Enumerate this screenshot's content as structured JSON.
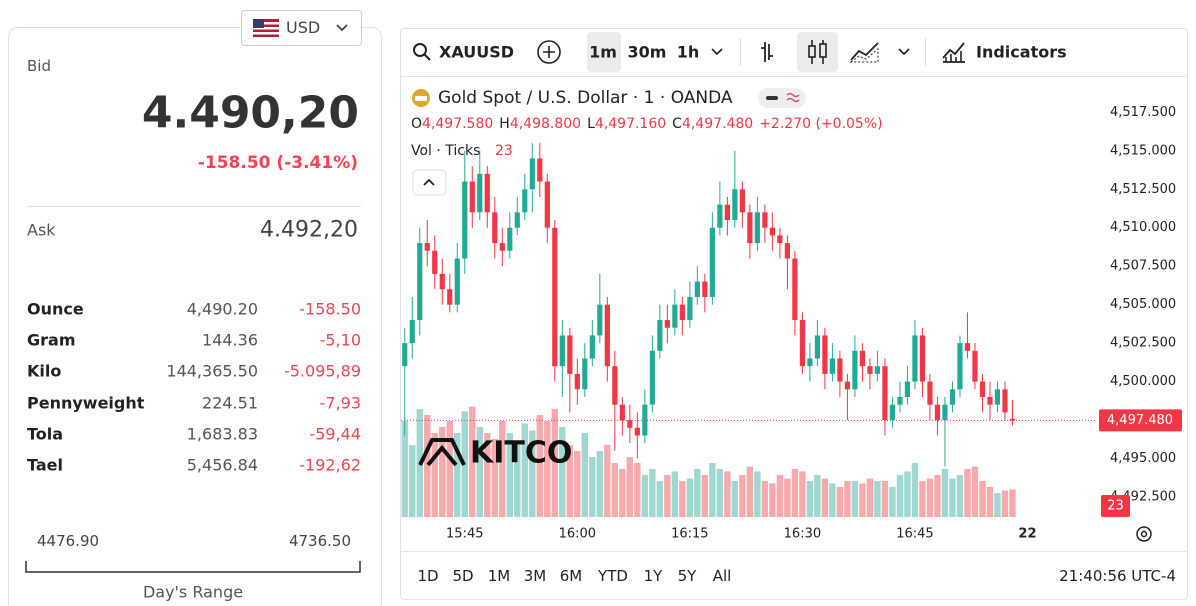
{
  "currency": "USD",
  "bid": {
    "label": "Bid",
    "value": "4.490,20",
    "change": "-158.50 (-3.41%)"
  },
  "ask": {
    "label": "Ask",
    "value": "4.492,20"
  },
  "units": [
    [
      "Ounce",
      "4,490.20",
      "-158.50"
    ],
    [
      "Gram",
      "144.36",
      "-5,10"
    ],
    [
      "Kilo",
      "144,365.50",
      "-5.095,89"
    ],
    [
      "Pennyweight",
      "224.51",
      "-7,93"
    ],
    [
      "Tola",
      "1,683.83",
      "-59,44"
    ],
    [
      "Tael",
      "5,456.84",
      "-192,62"
    ]
  ],
  "range": {
    "low": "4476.90",
    "high": "4736.50",
    "label": "Day's Range"
  },
  "toolbar": {
    "symbol": "XAUUSD",
    "intervals": [
      "1m",
      "30m",
      "1h"
    ],
    "indicators": "Indicators"
  },
  "chart_data": {
    "type": "candlestick",
    "title": "Gold Spot / U.S. Dollar · 1 · OANDA",
    "ohlc": [
      [
        "O",
        "4,497.580"
      ],
      [
        "H",
        "4,498.800"
      ],
      [
        "L",
        "4,497.160"
      ],
      [
        "C",
        "4,497.480"
      ]
    ],
    "change": "+2.270 (+0.05%)",
    "volume_title": "Vol · Ticks",
    "watermark": "KITCO",
    "last_price_label": "4,497.480",
    "up_color": "#22ab94",
    "down_color": "#f23645",
    "up_volume_color": "#9fd8d0",
    "down_volume_color": "#f7a9ae",
    "ylim": [
      4491.2,
      4519.6
    ],
    "yticks": [
      {
        "value": 4517.5,
        "label": "4,517.500"
      },
      {
        "value": 4515,
        "label": "4,515.000"
      },
      {
        "value": 4512.5,
        "label": "4,512.500"
      },
      {
        "value": 4510,
        "label": "4,510.000"
      },
      {
        "value": 4507.5,
        "label": "4,507.500"
      },
      {
        "value": 4505,
        "label": "4,505.000"
      },
      {
        "value": 4502.5,
        "label": "4,502.500"
      },
      {
        "value": 4500,
        "label": "4,500.000"
      },
      {
        "value": 4495,
        "label": "4,495.000"
      },
      {
        "value": 4492.5,
        "label": "4,492.500"
      }
    ],
    "xlim": [
      -0.5,
      92
    ],
    "xticks": [
      {
        "value": 8,
        "label": "15:45"
      },
      {
        "value": 23,
        "label": "16:00"
      },
      {
        "value": 38,
        "label": "16:15"
      },
      {
        "value": 53,
        "label": "16:30"
      },
      {
        "value": 68,
        "label": "16:45"
      },
      {
        "value": 83,
        "label": "22"
      }
    ],
    "vlim": [
      0,
      100
    ],
    "candles": [
      [
        4501,
        4503.5,
        4496.5,
        4502.5
      ],
      [
        4502.5,
        4505.5,
        4501.5,
        4504
      ],
      [
        4504,
        4510,
        4503,
        4509
      ],
      [
        4509,
        4510.5,
        4507.5,
        4508.5
      ],
      [
        4508.5,
        4509.5,
        4506,
        4507
      ],
      [
        4507,
        4508,
        4505,
        4506
      ],
      [
        4506,
        4507,
        4504.5,
        4505
      ],
      [
        4505,
        4509,
        4504.5,
        4508
      ],
      [
        4508,
        4515,
        4507,
        4513
      ],
      [
        4513,
        4514,
        4510,
        4511
      ],
      [
        4511,
        4515,
        4510.5,
        4513.5
      ],
      [
        4513.5,
        4514,
        4510,
        4511
      ],
      [
        4511,
        4512,
        4508,
        4509
      ],
      [
        4509,
        4510,
        4507.5,
        4508.5
      ],
      [
        4508.5,
        4511,
        4508,
        4510
      ],
      [
        4510,
        4512,
        4509.5,
        4511
      ],
      [
        4511,
        4513.5,
        4510.5,
        4512.5
      ],
      [
        4512.5,
        4515.5,
        4511,
        4514.5
      ],
      [
        4514.5,
        4515.5,
        4512,
        4513
      ],
      [
        4513,
        4513.5,
        4509,
        4510
      ],
      [
        4510,
        4510.5,
        4500,
        4501
      ],
      [
        4501,
        4504,
        4499,
        4503
      ],
      [
        4503,
        4503.5,
        4498,
        4500.5
      ],
      [
        4500.5,
        4501.5,
        4498.5,
        4499.5
      ],
      [
        4499.5,
        4502.5,
        4499,
        4501.5
      ],
      [
        4501.5,
        4504,
        4501,
        4503
      ],
      [
        4503,
        4507,
        4502.5,
        4505
      ],
      [
        4505,
        4505.5,
        4500,
        4501
      ],
      [
        4501,
        4502,
        4495.5,
        4498.5
      ],
      [
        4498.5,
        4499,
        4496.5,
        4497.5
      ],
      [
        4497.5,
        4498.5,
        4496,
        4497
      ],
      [
        4497,
        4498,
        4495,
        4496.5
      ],
      [
        4496.5,
        4499.5,
        4496,
        4498.5
      ],
      [
        4498.5,
        4503,
        4498,
        4502
      ],
      [
        4502,
        4505,
        4501.5,
        4504
      ],
      [
        4504,
        4505,
        4502.5,
        4503.5
      ],
      [
        4503.5,
        4506,
        4503,
        4505
      ],
      [
        4505,
        4505.5,
        4503,
        4504
      ],
      [
        4504,
        4506.5,
        4503.5,
        4505.5
      ],
      [
        4505.5,
        4507.5,
        4505,
        4506.5
      ],
      [
        4506.5,
        4507,
        4504.5,
        4505.5
      ],
      [
        4505.5,
        4511,
        4505,
        4510
      ],
      [
        4510,
        4513,
        4509.5,
        4511.5
      ],
      [
        4511.5,
        4512,
        4509.5,
        4510.5
      ],
      [
        4510.5,
        4515,
        4510,
        4512.5
      ],
      [
        4512.5,
        4513,
        4510,
        4511
      ],
      [
        4511,
        4511.5,
        4508,
        4509
      ],
      [
        4509,
        4512,
        4508.5,
        4511
      ],
      [
        4511,
        4511.5,
        4509,
        4510
      ],
      [
        4510,
        4511,
        4508.5,
        4509.5
      ],
      [
        4509.5,
        4510,
        4508,
        4509
      ],
      [
        4509,
        4509.5,
        4506,
        4508
      ],
      [
        4508,
        4508.5,
        4503,
        4504
      ],
      [
        4504,
        4504.5,
        4500.5,
        4501
      ],
      [
        4501,
        4502.5,
        4500,
        4501.5
      ],
      [
        4501.5,
        4504,
        4501,
        4503
      ],
      [
        4503,
        4503.5,
        4499.5,
        4500.5
      ],
      [
        4500.5,
        4502.5,
        4500,
        4501.5
      ],
      [
        4501.5,
        4502,
        4499,
        4500
      ],
      [
        4500,
        4500.5,
        4497.5,
        4499.5
      ],
      [
        4499.5,
        4503,
        4499,
        4502
      ],
      [
        4502,
        4502.5,
        4500,
        4501
      ],
      [
        4501,
        4501.5,
        4499.5,
        4500.5
      ],
      [
        4500.5,
        4502,
        4500,
        4501
      ],
      [
        4501,
        4501.5,
        4496.5,
        4497.5
      ],
      [
        4497.5,
        4499,
        4497,
        4498.5
      ],
      [
        4498.5,
        4500,
        4498,
        4499
      ],
      [
        4499,
        4501,
        4498.5,
        4500
      ],
      [
        4500,
        4504,
        4499.5,
        4503
      ],
      [
        4503,
        4503.5,
        4499,
        4500
      ],
      [
        4500,
        4500.5,
        4497.5,
        4498.5
      ],
      [
        4498.5,
        4499,
        4496.5,
        4497.5
      ],
      [
        4497.5,
        4499,
        4494.5,
        4498.5
      ],
      [
        4498.5,
        4500,
        4498,
        4499.5
      ],
      [
        4499.5,
        4503,
        4499,
        4502.5
      ],
      [
        4502.5,
        4504.5,
        4501.5,
        4502
      ],
      [
        4502,
        4502.5,
        4499.5,
        4500
      ],
      [
        4500,
        4500.5,
        4498,
        4499
      ],
      [
        4499,
        4500,
        4497.5,
        4498.5
      ],
      [
        4498.5,
        4500,
        4498,
        4499.5
      ],
      [
        4499.5,
        4500,
        4497.5,
        4498
      ],
      [
        4497.58,
        4498.8,
        4497.16,
        4497.48
      ]
    ],
    "volumes": [
      80,
      60,
      90,
      85,
      70,
      75,
      80,
      70,
      88,
      92,
      75,
      70,
      65,
      80,
      70,
      60,
      78,
      72,
      85,
      80,
      90,
      75,
      60,
      55,
      70,
      50,
      55,
      60,
      45,
      40,
      50,
      45,
      35,
      40,
      30,
      35,
      38,
      30,
      32,
      40,
      35,
      45,
      40,
      38,
      30,
      35,
      42,
      38,
      30,
      28,
      35,
      32,
      40,
      38,
      30,
      35,
      32,
      28,
      25,
      30,
      30,
      28,
      32,
      30,
      30,
      25,
      35,
      38,
      45,
      30,
      32,
      35,
      40,
      32,
      35,
      40,
      42,
      30,
      25,
      20,
      22,
      23
    ]
  },
  "ranges": [
    "1D",
    "5D",
    "1M",
    "3M",
    "6M",
    "YTD",
    "1Y",
    "5Y",
    "All"
  ],
  "clock": "21:40:56 UTC-4"
}
